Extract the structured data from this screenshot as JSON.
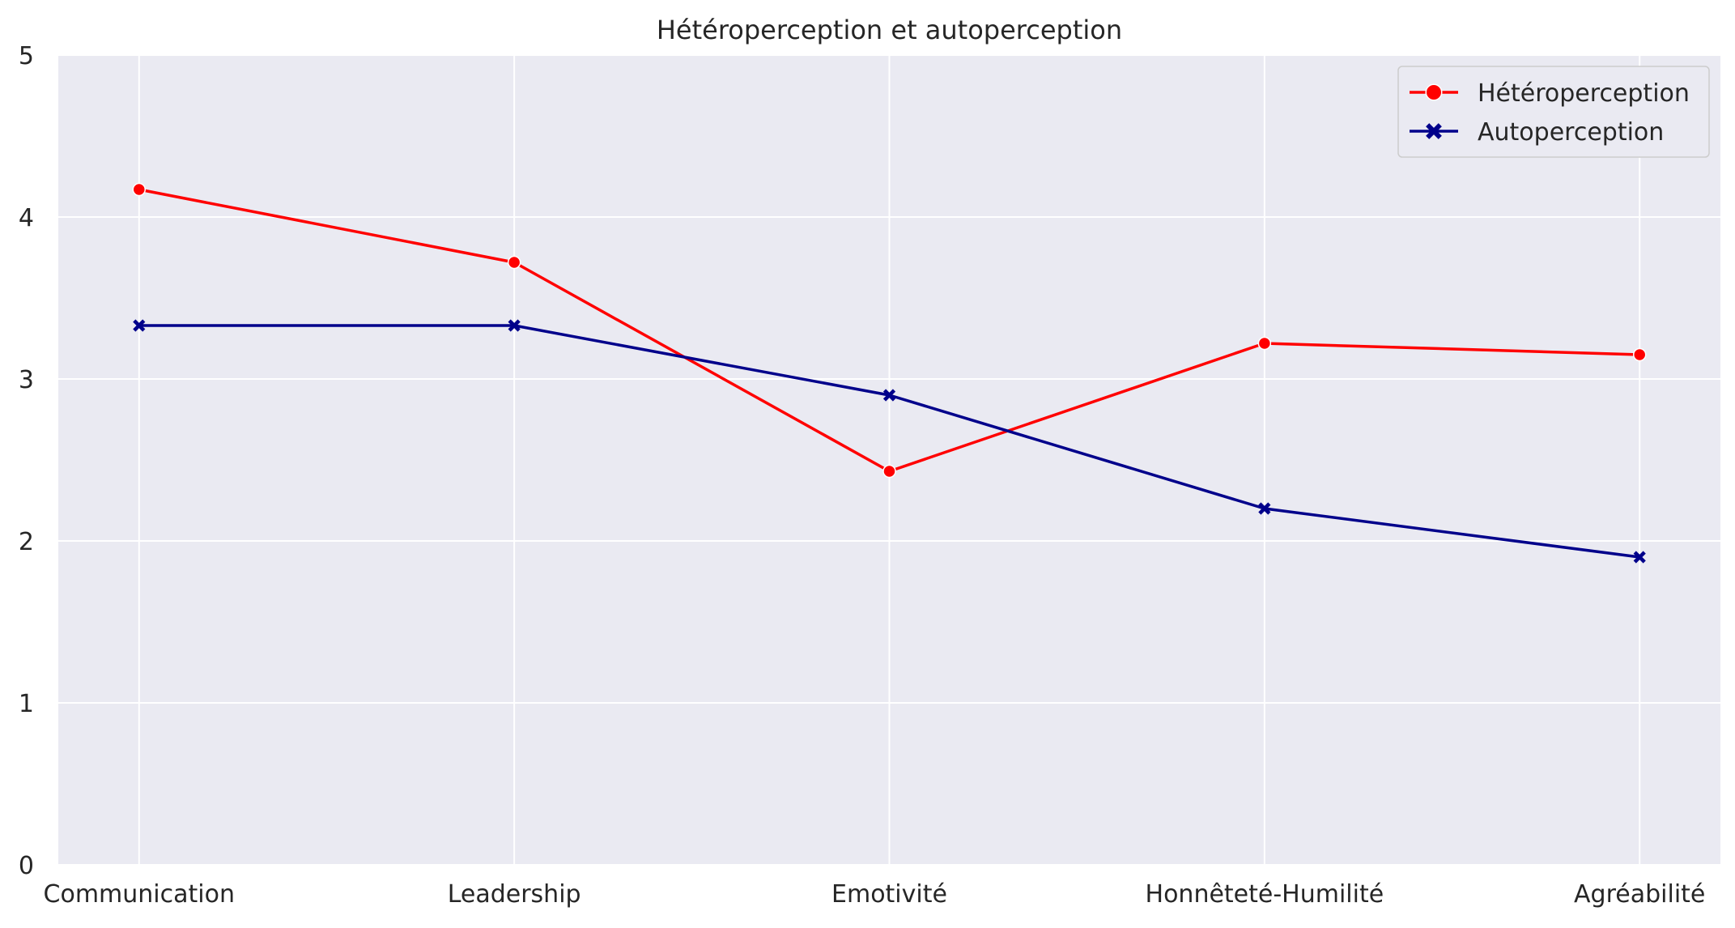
{
  "chart_data": {
    "type": "line",
    "title": "Hétéroperception et autoperception",
    "xlabel": "",
    "ylabel": "",
    "categories": [
      "Communication",
      "Leadership",
      "Emotivité",
      "Honnêteté-Humilité",
      "Agréabilité"
    ],
    "ylim": [
      0,
      5
    ],
    "yticks": [
      0,
      1,
      2,
      3,
      4,
      5
    ],
    "grid": true,
    "legend_position": "top-right",
    "background": "#eaeaf2",
    "series": [
      {
        "name": "Hétéroperception",
        "values": [
          4.17,
          3.72,
          2.43,
          3.22,
          3.15
        ],
        "color": "#ff0000",
        "marker": "circle"
      },
      {
        "name": "Autoperception",
        "values": [
          3.33,
          3.33,
          2.9,
          2.2,
          1.9
        ],
        "color": "#00008b",
        "marker": "x"
      }
    ]
  }
}
